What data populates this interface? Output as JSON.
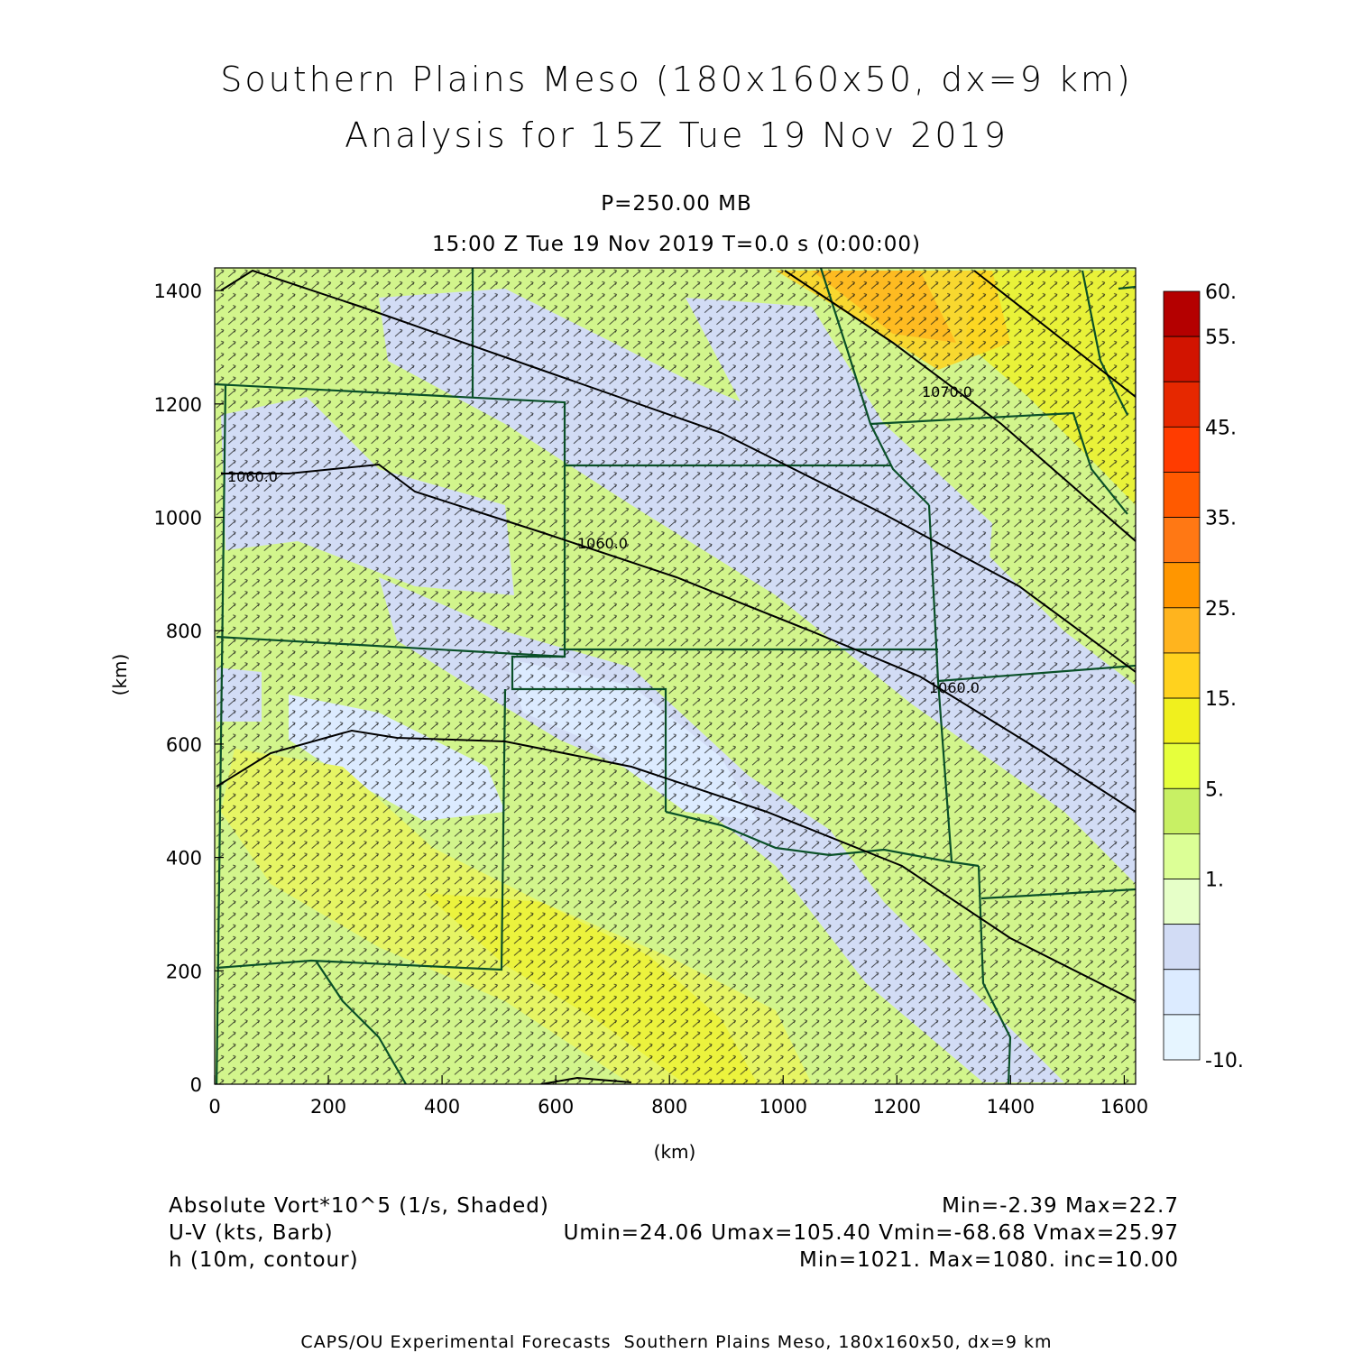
{
  "title": {
    "line1": "Southern Plains Meso (180x160x50, dx=9 km)",
    "line2": "Analysis for 15Z Tue 19 Nov 2019"
  },
  "subtitle": {
    "level": "P=250.00 MB",
    "time": "15:00 Z Tue 19 Nov 2019    T=0.0 s (0:00:00)"
  },
  "axes": {
    "x_ticks": [
      "0",
      "200",
      "400",
      "600",
      "800",
      "1000",
      "1200",
      "1400",
      "1600"
    ],
    "y_ticks": [
      "0",
      "200",
      "400",
      "600",
      "800",
      "1000",
      "1200",
      "1400"
    ],
    "x_label": "(km)",
    "y_label": "(km)",
    "x_range": [
      0,
      1620
    ],
    "y_range": [
      0,
      1440
    ]
  },
  "colorbar": {
    "labels": [
      "60.",
      "55.",
      "45.",
      "35.",
      "25.",
      "15.",
      "5.",
      "1.",
      "-10."
    ],
    "colors": [
      "#b40000",
      "#d21400",
      "#e62800",
      "#ff3c00",
      "#ff5a00",
      "#ff7814",
      "#ff9600",
      "#ffb41e",
      "#ffd21e",
      "#f0f01e",
      "#e6ff3c",
      "#c8f064",
      "#dcff96",
      "#e6ffc8",
      "#d2dcf5",
      "#dcebff",
      "#e6f5ff"
    ]
  },
  "contour_labels": [
    "1060.0",
    "1060.0",
    "1060.0",
    "1070.0"
  ],
  "legend": {
    "field1_name": "Absolute Vort*10^5 (1/s, Shaded)",
    "field1_stats": "Min=-2.39 Max=22.7",
    "field2_name": "U-V (kts, Barb)",
    "field2_stats": "Umin=24.06 Umax=105.40 Vmin=-68.68 Vmax=25.97",
    "field3_name": "h (10m, contour)",
    "field3_stats": "Min=1021. Max=1080. inc=10.00"
  },
  "footer": "CAPS/OU Experimental Forecasts  Southern Plains Meso, 180x160x50, dx=9 km",
  "colors": {
    "background_field": "#d2f58c",
    "low_vort": "#d2dcf5",
    "high_vort": "#f0f01e",
    "max_vort": "#ffb41e",
    "state_lines": "#0a5028",
    "contours": "#000000",
    "barbs": "#000000"
  }
}
